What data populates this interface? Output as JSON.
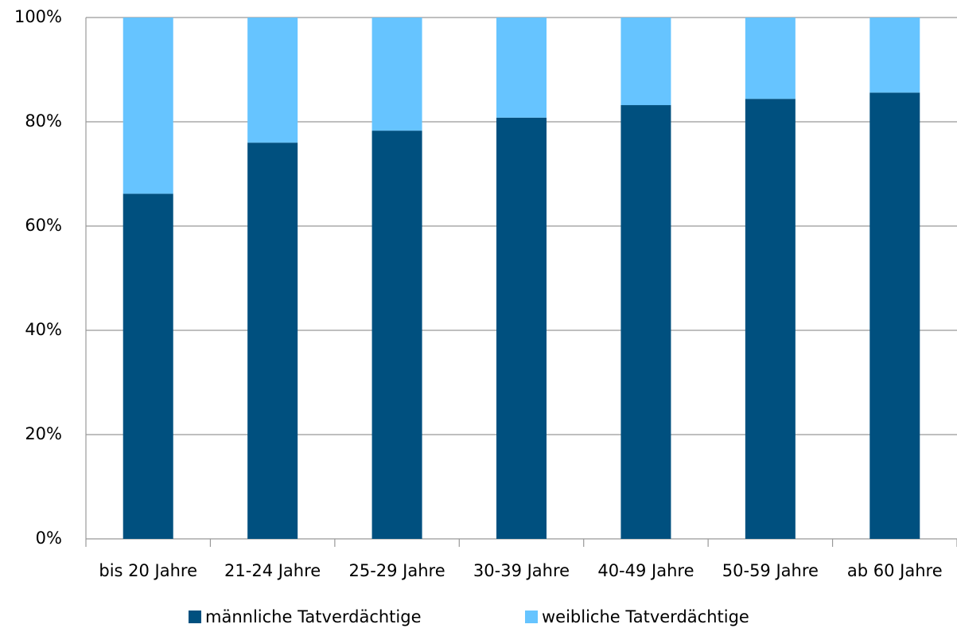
{
  "chart_data": {
    "type": "stacked_bar",
    "categories": [
      "bis 20 Jahre",
      "21-24 Jahre",
      "25-29 Jahre",
      "30-39 Jahre",
      "40-49 Jahre",
      "50-59 Jahre",
      "ab 60 Jahre"
    ],
    "series": [
      {
        "name": "männliche Tatverdächtige",
        "color": "#00507f",
        "values": [
          66.2,
          76.0,
          78.3,
          80.8,
          83.2,
          84.4,
          85.6
        ]
      },
      {
        "name": "weibliche Tatverdächtige",
        "color": "#66c4ff",
        "values": [
          33.8,
          24.0,
          21.7,
          19.2,
          16.8,
          15.6,
          14.4
        ]
      }
    ],
    "ylim": [
      0,
      100
    ],
    "yticks": [
      {
        "value": 0,
        "label": "0%"
      },
      {
        "value": 20,
        "label": "20%"
      },
      {
        "value": 40,
        "label": "40%"
      },
      {
        "value": 60,
        "label": "60%"
      },
      {
        "value": 80,
        "label": "80%"
      },
      {
        "value": 100,
        "label": "100%"
      }
    ],
    "grid": true,
    "legend": "bottom"
  }
}
